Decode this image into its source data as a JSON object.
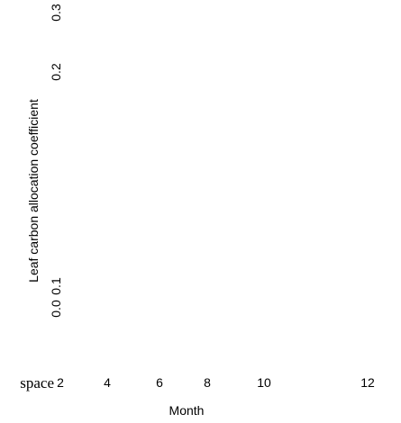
{
  "chart_data": {
    "type": "line",
    "title": "",
    "xlabel": "Month",
    "ylabel": "Leaf carbon allocation coefficient",
    "x_ticks": [
      2,
      4,
      6,
      8,
      10,
      12
    ],
    "y_ticks": [
      "0.0",
      "0.1",
      "0.2",
      "0.3"
    ],
    "xlim": [
      2,
      12
    ],
    "ylim": [
      0,
      0.3
    ],
    "stray_text": "space",
    "series": [],
    "grid": false
  }
}
